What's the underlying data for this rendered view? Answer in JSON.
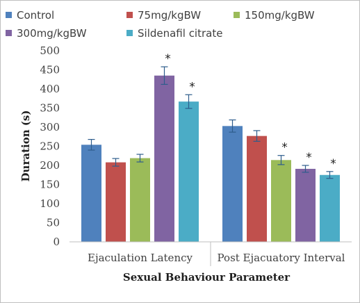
{
  "chart_data": {
    "type": "bar",
    "categories": [
      "Ejaculation Latency",
      "Post Ejacuatory Interval"
    ],
    "series": [
      {
        "name": "Control",
        "color": "#4F81BD",
        "values": [
          254,
          303
        ],
        "errors": [
          14,
          16
        ],
        "significant": [
          false,
          false
        ]
      },
      {
        "name": "75mg/kgBW",
        "color": "#C0504D",
        "values": [
          208,
          277
        ],
        "errors": [
          10,
          14
        ],
        "significant": [
          false,
          false
        ]
      },
      {
        "name": "150mg/kgBW",
        "color": "#9BBB59",
        "values": [
          219,
          214
        ],
        "errors": [
          10,
          12
        ],
        "significant": [
          false,
          true
        ]
      },
      {
        "name": "300mg/kgBW",
        "color": "#8064A2",
        "values": [
          435,
          191
        ],
        "errors": [
          23,
          9
        ],
        "significant": [
          true,
          true
        ]
      },
      {
        "name": "Sildenafil citrate",
        "color": "#4BACC6",
        "values": [
          367,
          175
        ],
        "errors": [
          18,
          9
        ],
        "significant": [
          true,
          true
        ]
      }
    ],
    "significance_marker": "*",
    "xlabel": "Sexual Behaviour Parameter",
    "ylabel": "Duration (s)",
    "ylim": [
      0,
      500
    ],
    "yticks": [
      "0",
      "50",
      "100",
      "150",
      "200",
      "250",
      "300",
      "350",
      "400",
      "450",
      "500"
    ],
    "grid": false,
    "legend_position": "top"
  }
}
